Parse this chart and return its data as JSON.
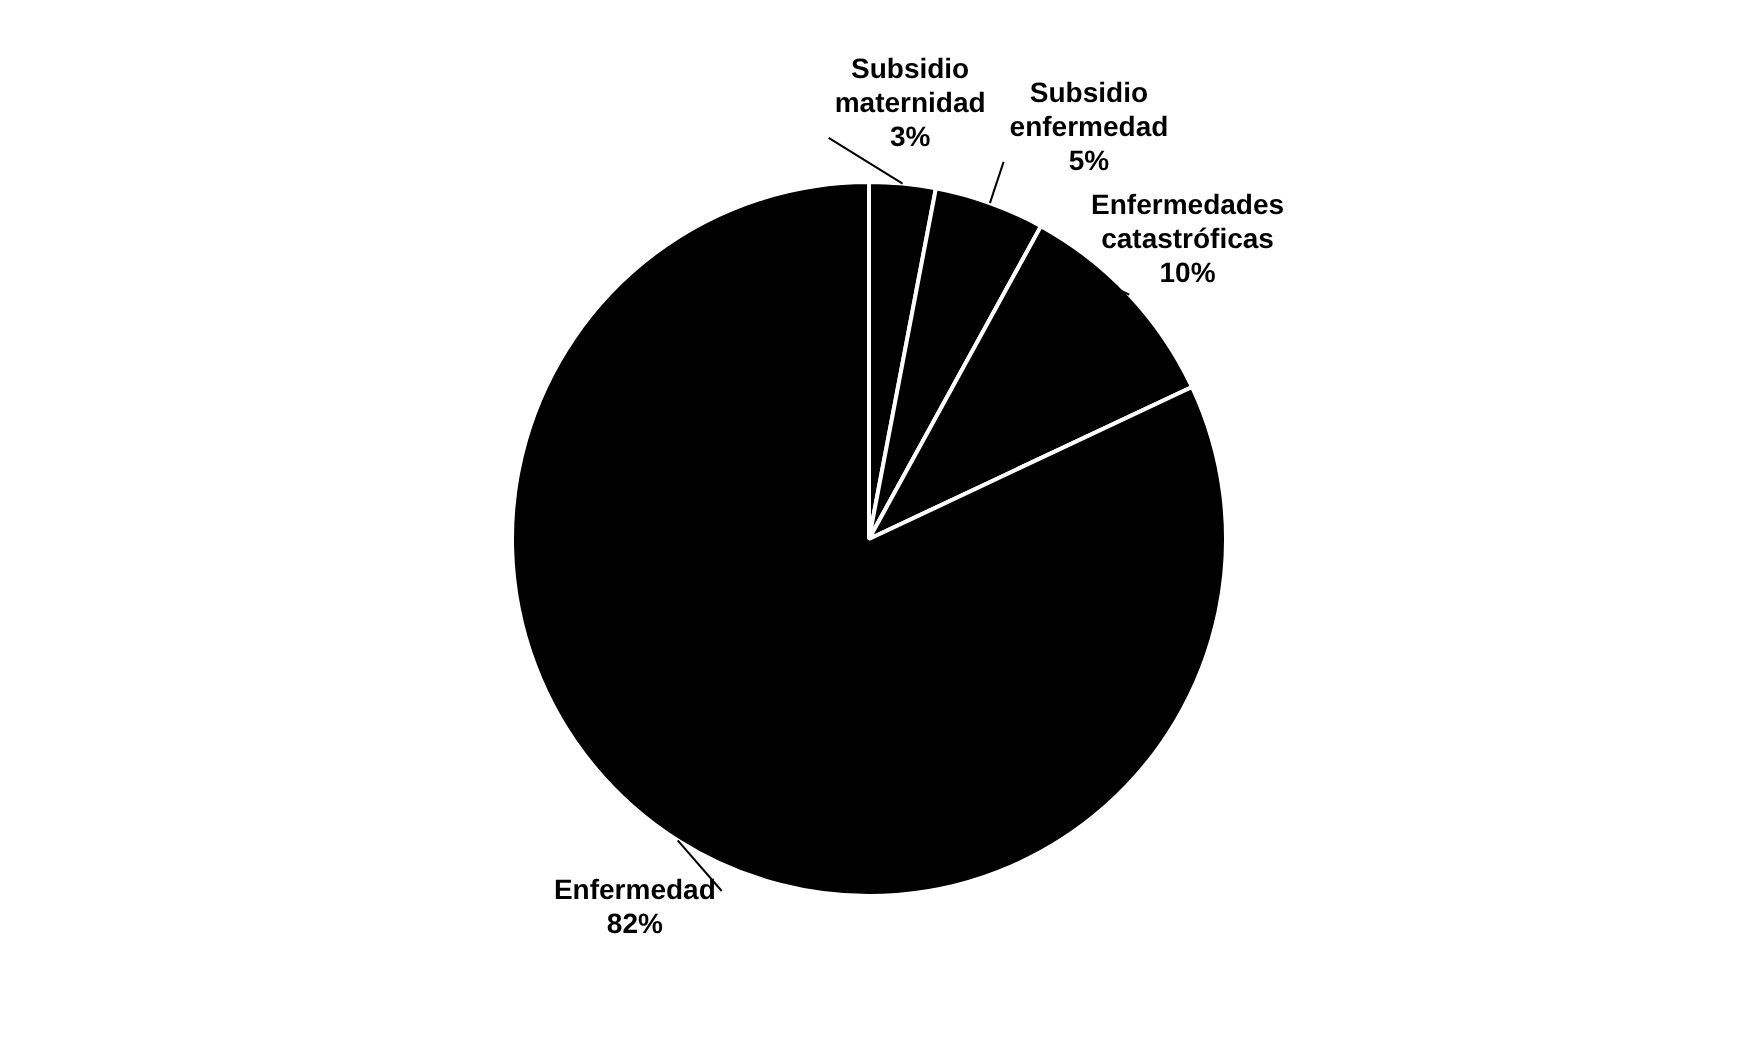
{
  "chart_data": {
    "type": "pie",
    "categories": [
      "Subsidio maternidad",
      "Subsidio enfermedad",
      "Enfermedades catastróficas",
      "Enfermedad"
    ],
    "values": [
      3,
      5,
      10,
      82
    ],
    "colors": [
      "#000000",
      "#000000",
      "#000000",
      "#000000"
    ],
    "value_labels": [
      "3%",
      "5%",
      "10%",
      "82%"
    ],
    "legend": false
  }
}
